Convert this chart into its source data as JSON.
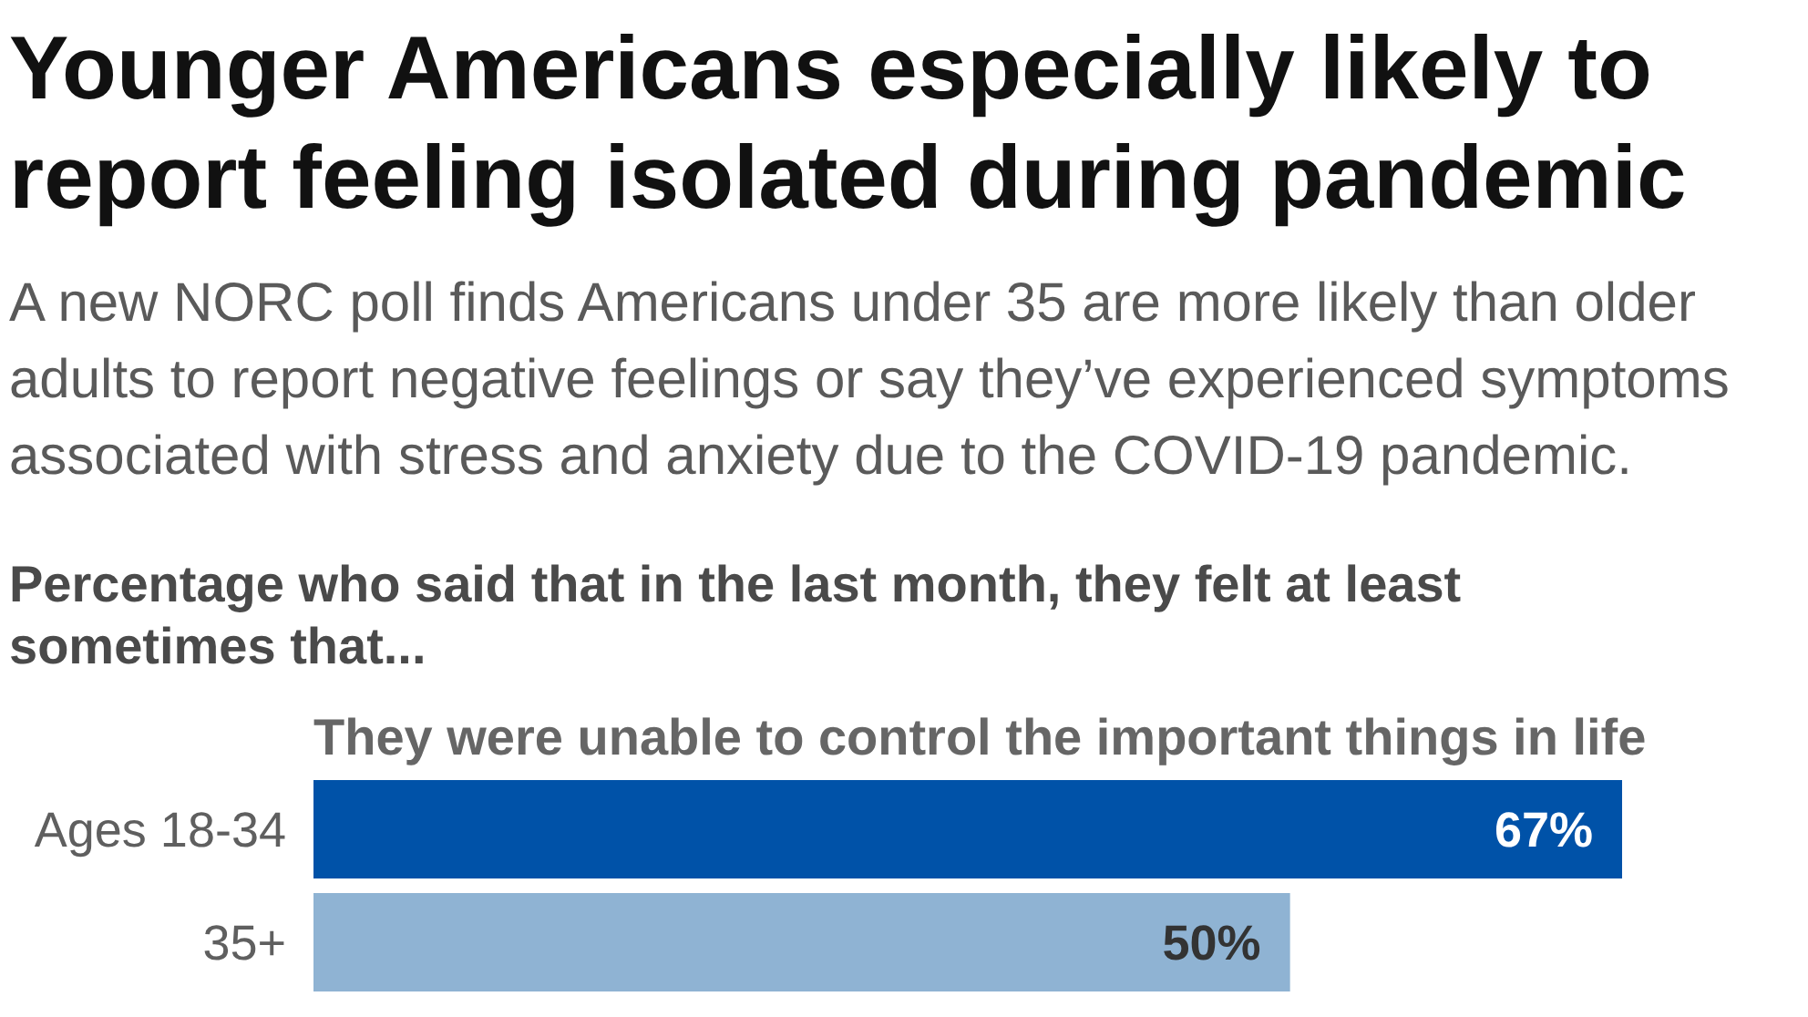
{
  "chart_data": {
    "type": "bar",
    "orientation": "horizontal",
    "title": "Younger Americans especially likely to report feeling isolated during pandemic",
    "subtitle": "A new NORC poll finds Americans under 35 are more likely than older adults to report negative feelings or say they’ve experienced symptoms associated with stress and anxiety due to the COVID-19 pandemic.",
    "annotations": [
      "Percentage who said that in the last month, they felt at least sometimes that...",
      "They were unable to control the important things in life"
    ],
    "categories": [
      "Ages 18-34",
      "35+"
    ],
    "values": [
      67,
      50
    ],
    "colors": [
      "#0052a8",
      "#8fb3d3"
    ],
    "value_labels": [
      "67%",
      "50%"
    ]
  }
}
